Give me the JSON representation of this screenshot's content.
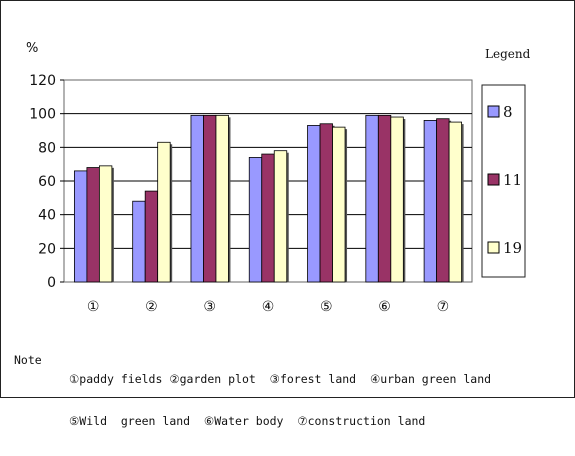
{
  "chart_data": {
    "type": "bar",
    "ylabel": "%",
    "ylim": [
      0,
      120
    ],
    "yticks": [
      0,
      20,
      40,
      60,
      80,
      100,
      120
    ],
    "grid": true,
    "categories": [
      "①",
      "②",
      "③",
      "④",
      "⑤",
      "⑥",
      "⑦"
    ],
    "series": [
      {
        "name": "8",
        "color": "#9999ff",
        "values": [
          66,
          48,
          99,
          74,
          93,
          99,
          96
        ]
      },
      {
        "name": "11",
        "color": "#993366",
        "values": [
          68,
          54,
          99,
          76,
          94,
          99,
          97
        ]
      },
      {
        "name": "19",
        "color": "#ffffcc",
        "values": [
          69,
          83,
          99,
          78,
          92,
          98,
          95
        ]
      }
    ],
    "legend": {
      "title": "Legend",
      "position": "right"
    }
  },
  "note": {
    "label": "Note",
    "lines": [
      "①paddy fields ②garden plot  ③forest land  ④urban green land",
      "⑤Wild  green land  ⑥Water body  ⑦construction land"
    ]
  }
}
